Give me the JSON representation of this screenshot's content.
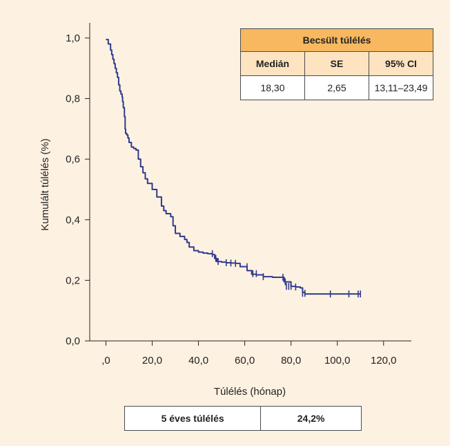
{
  "chart_data": {
    "type": "line",
    "title": "",
    "xlabel": "Túlélés (hónap)",
    "ylabel": "Kumulált túlélés (%)",
    "xlim": [
      -7,
      132
    ],
    "ylim": [
      0,
      1.05
    ],
    "x_ticks": [
      0,
      20,
      40,
      60,
      80,
      100,
      120
    ],
    "x_tick_labels": [
      ",0",
      "20,0",
      "40,0",
      "60,0",
      "80,0",
      "100,0",
      "120,0"
    ],
    "y_ticks": [
      0,
      0.2,
      0.4,
      0.6,
      0.8,
      1.0
    ],
    "y_tick_labels": [
      "0,0",
      "0,2",
      "0,4",
      "0,6",
      "0,8",
      "1,0"
    ],
    "grid": false,
    "line_color": "#303a8c",
    "series": [
      {
        "name": "",
        "x": [
          0,
          1,
          2,
          2.5,
          3,
          3.5,
          4,
          4.5,
          5,
          5.5,
          6,
          6.5,
          7,
          7.2,
          7.5,
          8,
          8.3,
          8.5,
          9,
          9.5,
          10,
          11,
          12,
          13,
          14,
          15,
          16,
          17,
          18,
          20,
          22,
          24,
          25,
          26,
          28,
          29,
          30,
          32,
          34,
          35,
          36,
          38,
          40,
          42,
          44,
          46,
          47,
          48,
          50,
          52,
          54,
          56,
          58,
          60,
          61,
          63,
          65,
          68,
          72,
          76,
          77,
          80,
          82,
          84,
          85,
          86,
          90,
          95,
          100,
          105,
          110
        ],
        "y": [
          0.995,
          0.98,
          0.96,
          0.945,
          0.93,
          0.915,
          0.9,
          0.885,
          0.87,
          0.845,
          0.825,
          0.815,
          0.805,
          0.79,
          0.77,
          0.74,
          0.7,
          0.685,
          0.68,
          0.67,
          0.655,
          0.64,
          0.635,
          0.63,
          0.6,
          0.575,
          0.555,
          0.535,
          0.52,
          0.5,
          0.475,
          0.445,
          0.43,
          0.42,
          0.41,
          0.38,
          0.355,
          0.345,
          0.335,
          0.325,
          0.31,
          0.298,
          0.293,
          0.29,
          0.288,
          0.285,
          0.272,
          0.262,
          0.26,
          0.258,
          0.257,
          0.256,
          0.245,
          0.245,
          0.232,
          0.22,
          0.218,
          0.212,
          0.21,
          0.21,
          0.195,
          0.18,
          0.178,
          0.175,
          0.16,
          0.155,
          0.155,
          0.155,
          0.155,
          0.155,
          0.155
        ]
      }
    ],
    "censor_marks": [
      {
        "x": 46,
        "y": 0.288
      },
      {
        "x": 47.5,
        "y": 0.272
      },
      {
        "x": 48.5,
        "y": 0.262
      },
      {
        "x": 52,
        "y": 0.258
      },
      {
        "x": 54,
        "y": 0.257
      },
      {
        "x": 56,
        "y": 0.256
      },
      {
        "x": 61,
        "y": 0.245
      },
      {
        "x": 63.5,
        "y": 0.222
      },
      {
        "x": 65,
        "y": 0.222
      },
      {
        "x": 68,
        "y": 0.212
      },
      {
        "x": 76.5,
        "y": 0.21
      },
      {
        "x": 77.5,
        "y": 0.195
      },
      {
        "x": 78,
        "y": 0.18
      },
      {
        "x": 79,
        "y": 0.18
      },
      {
        "x": 80,
        "y": 0.18
      },
      {
        "x": 82,
        "y": 0.178
      },
      {
        "x": 85,
        "y": 0.157
      },
      {
        "x": 86,
        "y": 0.157
      },
      {
        "x": 97,
        "y": 0.155
      },
      {
        "x": 105,
        "y": 0.155
      },
      {
        "x": 109,
        "y": 0.155
      },
      {
        "x": 110,
        "y": 0.155
      }
    ]
  },
  "stats_table": {
    "title": "Becsült túlélés",
    "headers": [
      "Medián",
      "SE",
      "95% CI"
    ],
    "values": [
      "18,30",
      "2,65",
      "13,11–23,49"
    ]
  },
  "survival_table": {
    "label": "5 éves túlélés",
    "value": "24,2%"
  }
}
